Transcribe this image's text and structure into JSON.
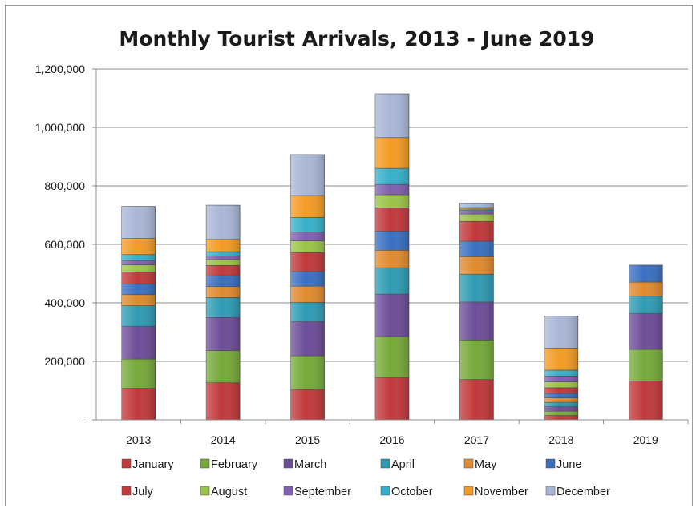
{
  "chart_data": {
    "type": "bar",
    "stacked": true,
    "title": "Monthly Tourist Arrivals, 2013 - June 2019",
    "xlabel": "",
    "ylabel": "",
    "ylim": [
      0,
      1200000
    ],
    "y_ticks": [
      {
        "value": 0,
        "label": "-"
      },
      {
        "value": 200000,
        "label": "200,000"
      },
      {
        "value": 400000,
        "label": "400,000"
      },
      {
        "value": 600000,
        "label": "600,000"
      },
      {
        "value": 800000,
        "label": "800,000"
      },
      {
        "value": 1000000,
        "label": "1,000,000"
      },
      {
        "value": 1200000,
        "label": "1,200,000"
      }
    ],
    "grid": true,
    "legend_position": "bottom",
    "categories": [
      "2013",
      "2014",
      "2015",
      "2016",
      "2017",
      "2018",
      "2019"
    ],
    "series": [
      {
        "name": "January",
        "color": "#c0393b",
        "values": [
          108000,
          127000,
          104000,
          145000,
          138000,
          15000,
          133000
        ]
      },
      {
        "name": "February",
        "color": "#76a93a",
        "values": [
          100000,
          110000,
          115000,
          140000,
          135000,
          15000,
          108000
        ]
      },
      {
        "name": "March",
        "color": "#6d4d98",
        "values": [
          112000,
          113000,
          118000,
          145000,
          130000,
          15000,
          122000
        ]
      },
      {
        "name": "April",
        "color": "#2f9bb3",
        "values": [
          70000,
          68000,
          65000,
          90000,
          95000,
          15000,
          60000
        ]
      },
      {
        "name": "May",
        "color": "#e08a2e",
        "values": [
          38000,
          38000,
          55000,
          60000,
          60000,
          15000,
          48000
        ]
      },
      {
        "name": "June",
        "color": "#3a6fc0",
        "values": [
          37000,
          37000,
          50000,
          65000,
          53000,
          15000,
          58000
        ]
      },
      {
        "name": "July",
        "color": "#c0393b",
        "values": [
          40000,
          35000,
          65000,
          80000,
          68000,
          20000,
          0
        ]
      },
      {
        "name": "August",
        "color": "#9bc34a",
        "values": [
          25000,
          20000,
          40000,
          45000,
          25000,
          20000,
          0
        ]
      },
      {
        "name": "September",
        "color": "#7f5fae",
        "values": [
          15000,
          12000,
          30000,
          35000,
          12000,
          20000,
          0
        ]
      },
      {
        "name": "October",
        "color": "#36b0c9",
        "values": [
          20000,
          15000,
          50000,
          55000,
          5000,
          20000,
          0
        ]
      },
      {
        "name": "November",
        "color": "#f39b24",
        "values": [
          55000,
          42000,
          75000,
          105000,
          5000,
          75000,
          0
        ]
      },
      {
        "name": "December",
        "color": "#a9b6d6",
        "values": [
          110000,
          117000,
          140000,
          150000,
          15000,
          110000,
          0
        ]
      }
    ]
  }
}
